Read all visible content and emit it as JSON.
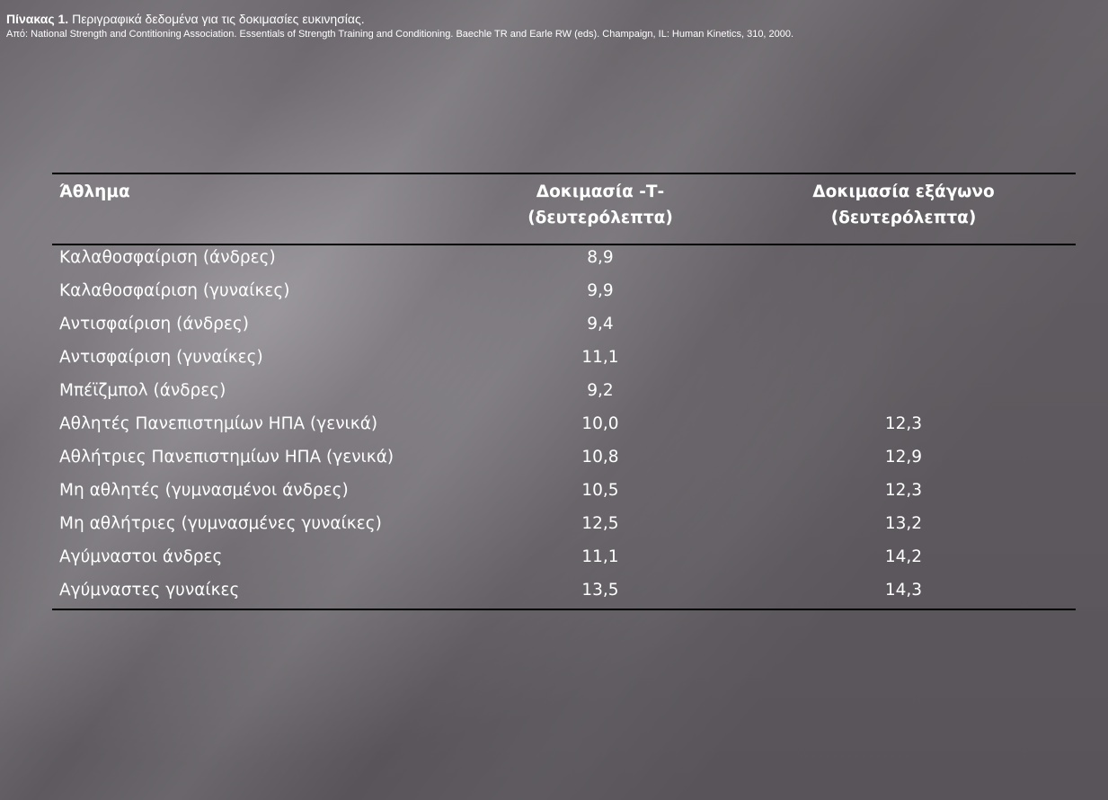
{
  "caption": {
    "label": "Πίνακας 1.",
    "title": " Περιγραφικά δεδομένα για τις δοκιμασίες ευκινησίας.",
    "source": "Από: National Strength and Contitioning Association. Essentials of Strength Training and Conditioning. Baechle TR and Earle RW (eds). Champaign, IL: Human Kinetics, 310, 2000."
  },
  "table": {
    "headers": {
      "sport": "Άθλημα",
      "t_test_line1": "Δοκιμασία -Τ-",
      "t_test_line2": "(δευτερόλεπτα)",
      "hex_test_line1": "Δοκιμασία εξάγωνο",
      "hex_test_line2": "(δευτερόλεπτα)"
    },
    "rows": [
      {
        "sport": "Καλαθοσφαίριση (άνδρες)",
        "t": "8,9",
        "hex": ""
      },
      {
        "sport": "Καλαθοσφαίριση (γυναίκες)",
        "t": "9,9",
        "hex": ""
      },
      {
        "sport": "Αντισφαίριση (άνδρες)",
        "t": "9,4",
        "hex": ""
      },
      {
        "sport": "Αντισφαίριση (γυναίκες)",
        "t": "11,1",
        "hex": ""
      },
      {
        "sport": "Μπέϊζμπολ (άνδρες)",
        "t": "9,2",
        "hex": ""
      },
      {
        "sport": "Αθλητές Πανεπιστημίων ΗΠΑ (γενικά)",
        "t": "10,0",
        "hex": "12,3"
      },
      {
        "sport": "Αθλήτριες Πανεπιστημίων ΗΠΑ (γενικά)",
        "t": "10,8",
        "hex": "12,9"
      },
      {
        "sport": "Μη αθλητές (γυμνασμένοι άνδρες)",
        "t": "10,5",
        "hex": "12,3"
      },
      {
        "sport": "Μη αθλήτριες (γυμνασμένες γυναίκες)",
        "t": "12,5",
        "hex": "13,2"
      },
      {
        "sport": "Αγύμναστοι άνδρες",
        "t": "11,1",
        "hex": "14,2"
      },
      {
        "sport": "Αγύμναστες γυναίκες",
        "t": "13,5",
        "hex": "14,3"
      }
    ]
  }
}
